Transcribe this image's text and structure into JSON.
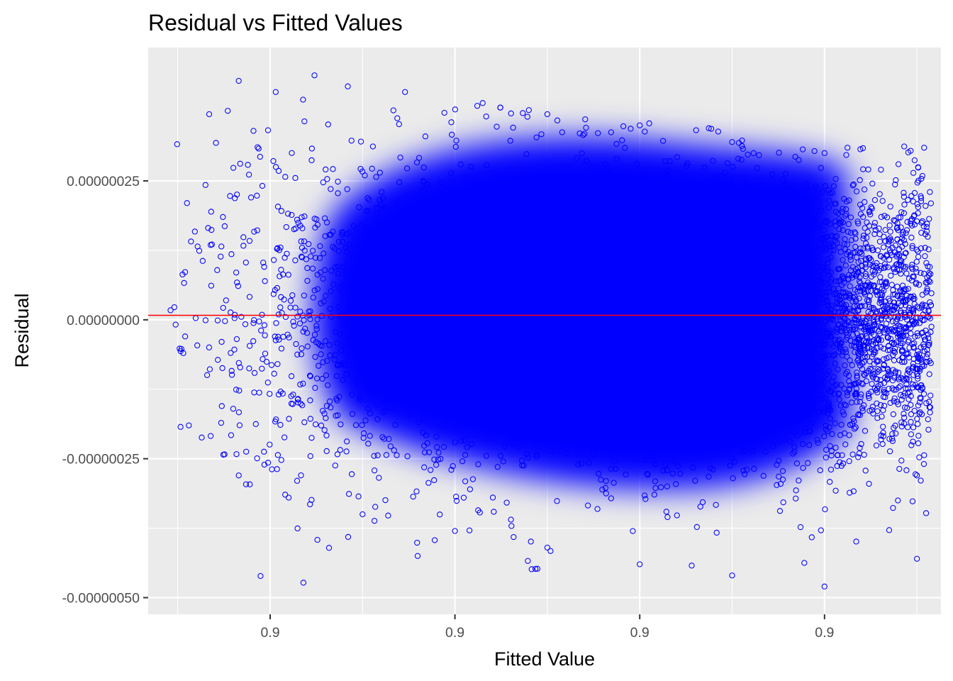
{
  "chart_data": {
    "type": "scatter",
    "title": "Residual vs Fitted Values",
    "xlabel": "Fitted Value",
    "ylabel": "Residual",
    "x_tick_labels": [
      "0.9",
      "0.9",
      "0.9",
      "0.9"
    ],
    "y_ticks": [
      2.5e-07,
      0,
      -2.5e-07,
      -5e-07
    ],
    "y_tick_labels": [
      "0.00000025",
      "0.00000000",
      "-0.00000025",
      "-0.00000050"
    ],
    "ylim": [
      -5.3e-07,
      4.9e-07
    ],
    "xlim_relative": [
      -0.66,
      3.63
    ],
    "reference_line": {
      "y": 0,
      "color": "#ff0000"
    },
    "point_color": "#0000ff",
    "panel_background": "#ebebeb",
    "grid": true,
    "note_points": "Approximately 40000 residual points forming a dense cloud; points shown are a representative sample.",
    "sample_points": [
      {
        "x": -0.45,
        "y": 2.1e-07
      },
      {
        "x": -0.46,
        "y": -3e-08
      },
      {
        "x": -0.47,
        "y": -6e-08
      },
      {
        "x": -0.44,
        "y": -1.9e-07
      },
      {
        "x": -0.33,
        "y": 3.7e-07
      },
      {
        "x": -0.17,
        "y": 4.3e-07
      },
      {
        "x": -0.09,
        "y": 3.4e-07
      },
      {
        "x": -0.17,
        "y": -2.8e-07
      },
      {
        "x": 0.03,
        "y": 4.1e-07
      },
      {
        "x": 0.24,
        "y": 4.4e-07
      },
      {
        "x": 0.42,
        "y": 4.2e-07
      },
      {
        "x": 0.73,
        "y": 4.1e-07
      },
      {
        "x": 1.15,
        "y": 3.9e-07
      },
      {
        "x": 1.5,
        "y": 3.7e-07
      },
      {
        "x": 2.0,
        "y": 3.5e-07
      },
      {
        "x": 2.5,
        "y": 3.2e-07
      },
      {
        "x": 3.0,
        "y": 3e-07
      },
      {
        "x": 3.4,
        "y": 2.8e-07
      },
      {
        "x": 3.57,
        "y": 2.3e-07
      },
      {
        "x": 3.55,
        "y": -1.5e-07
      },
      {
        "x": 3.5,
        "y": -2.8e-07
      },
      {
        "x": 3.5,
        "y": -4.3e-07
      },
      {
        "x": 3.0,
        "y": -4.8e-07
      },
      {
        "x": 2.5,
        "y": -4.6e-07
      },
      {
        "x": 2.0,
        "y": -4.4e-07
      },
      {
        "x": 1.5,
        "y": -4.1e-07
      },
      {
        "x": 1.0,
        "y": -3.8e-07
      },
      {
        "x": 0.5,
        "y": -3.5e-07
      },
      {
        "x": 0.1,
        "y": -3.2e-07
      },
      {
        "x": -0.2,
        "y": -1.6e-07
      }
    ]
  }
}
